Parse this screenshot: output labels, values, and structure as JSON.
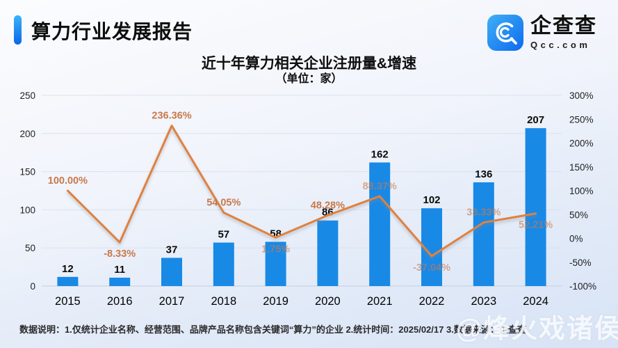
{
  "header": {
    "report_title": "算力行业发展报告",
    "logo": {
      "icon": "qcc-magnifier-icon",
      "cn": "企查查",
      "en": "Qcc.com"
    }
  },
  "chart": {
    "title": "近十年算力相关企业注册量&增速",
    "subtitle": "（单位：家）"
  },
  "chart_data": {
    "type": "bar",
    "categories": [
      "2015",
      "2016",
      "2017",
      "2018",
      "2019",
      "2020",
      "2021",
      "2022",
      "2023",
      "2024"
    ],
    "series": [
      {
        "name": "注册量",
        "type": "bar",
        "axis": "left",
        "values": [
          12,
          11,
          37,
          57,
          58,
          86,
          162,
          102,
          136,
          207
        ],
        "color": "#1989e6"
      },
      {
        "name": "增速",
        "type": "line",
        "axis": "right",
        "values": [
          100.0,
          -8.33,
          236.36,
          54.05,
          1.75,
          48.28,
          88.37,
          -37.04,
          33.33,
          52.21
        ],
        "labels": [
          "100.00%",
          "-8.33%",
          "236.36%",
          "54.05%",
          "1.75%",
          "48.28%",
          "88.37%",
          "-37.04%",
          "33.33%",
          "52.21%"
        ],
        "label_pos": [
          "above",
          "below",
          "above",
          "above",
          "below",
          "above",
          "above",
          "below",
          "above",
          "below"
        ],
        "color": "#e0813c",
        "label_color": "#c8794b"
      }
    ],
    "title": "近十年算力相关企业注册量&增速",
    "xlabel": "",
    "ylabel": "单位：家",
    "left_axis": {
      "ticks": [
        0,
        50,
        100,
        150,
        200,
        250
      ],
      "range": [
        0,
        250
      ]
    },
    "right_axis": {
      "ticks": [
        -100,
        -50,
        0,
        50,
        100,
        150,
        200,
        250,
        300
      ],
      "range": [
        -100,
        300
      ],
      "suffix": "%"
    },
    "grid": true,
    "legend_position": "none"
  },
  "footer": {
    "note": "数据说明：1.仅统计企业名称、经营范围、品牌产品名称包含关键词“算力”的企业  2.统计时间：2025/02/17  3.数据来源：企查查",
    "watermark": "@烽火戏诸侯"
  },
  "colors": {
    "accent_blue": "#0b66ea",
    "bar_blue": "#1989e6",
    "line_orange": "#e0813c",
    "label_orange": "#c8794b",
    "grid_line": "#dbe1ec",
    "axis_line": "#c4cedd"
  }
}
